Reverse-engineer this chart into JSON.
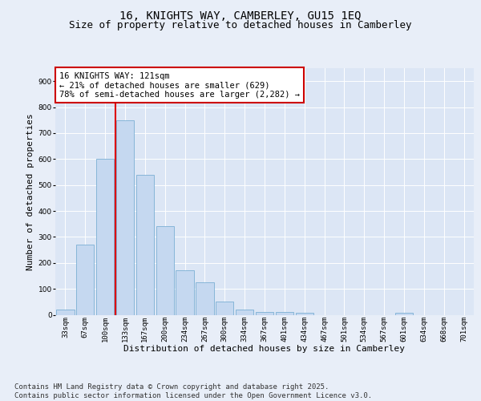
{
  "title": "16, KNIGHTS WAY, CAMBERLEY, GU15 1EQ",
  "subtitle": "Size of property relative to detached houses in Camberley",
  "xlabel": "Distribution of detached houses by size in Camberley",
  "ylabel": "Number of detached properties",
  "categories": [
    "33sqm",
    "67sqm",
    "100sqm",
    "133sqm",
    "167sqm",
    "200sqm",
    "234sqm",
    "267sqm",
    "300sqm",
    "334sqm",
    "367sqm",
    "401sqm",
    "434sqm",
    "467sqm",
    "501sqm",
    "534sqm",
    "567sqm",
    "601sqm",
    "634sqm",
    "668sqm",
    "701sqm"
  ],
  "values": [
    20,
    270,
    600,
    750,
    540,
    340,
    170,
    125,
    50,
    20,
    10,
    10,
    8,
    0,
    0,
    0,
    0,
    8,
    0,
    0,
    0
  ],
  "bar_color": "#c5d8f0",
  "bar_edge_color": "#7aafd4",
  "vline_color": "#dd0000",
  "vline_pos": 2.5,
  "annotation_text": "16 KNIGHTS WAY: 121sqm\n← 21% of detached houses are smaller (629)\n78% of semi-detached houses are larger (2,282) →",
  "annotation_box_edgecolor": "#cc0000",
  "ylim": [
    0,
    950
  ],
  "yticks": [
    0,
    100,
    200,
    300,
    400,
    500,
    600,
    700,
    800,
    900
  ],
  "bg_color": "#e8eef8",
  "plot_bg_color": "#dce6f5",
  "grid_color": "#ffffff",
  "title_fontsize": 10,
  "subtitle_fontsize": 9,
  "xlabel_fontsize": 8,
  "ylabel_fontsize": 8,
  "tick_fontsize": 6.5,
  "annotation_fontsize": 7.5,
  "footer_fontsize": 6.5,
  "footer": "Contains HM Land Registry data © Crown copyright and database right 2025.\nContains public sector information licensed under the Open Government Licence v3.0."
}
